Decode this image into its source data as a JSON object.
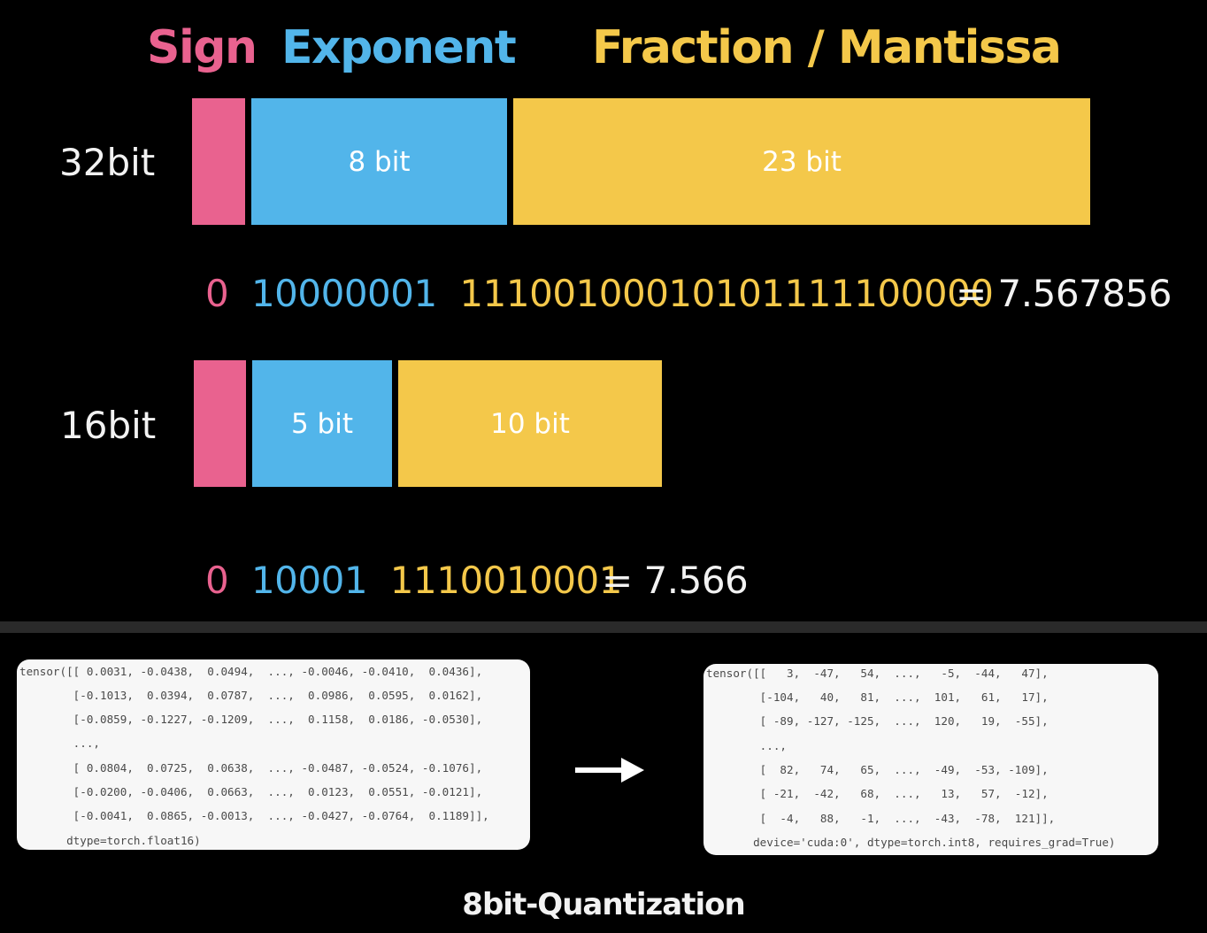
{
  "colors": {
    "sign": "#e9628f",
    "exponent": "#52b5ea",
    "fraction": "#f4c84a",
    "background": "#000000"
  },
  "headers": {
    "sign": "Sign",
    "exponent": "Exponent",
    "fraction": "Fraction / Mantissa"
  },
  "rows": {
    "fp32": {
      "label": "32bit",
      "exponent_label": "8 bit",
      "fraction_label": "23 bit",
      "sign_bits": "0",
      "exponent_bits": "10000001",
      "fraction_bits": "11100100010101111100000",
      "value_text": "= 7.567856"
    },
    "fp16": {
      "label": "16bit",
      "exponent_label": "5 bit",
      "fraction_label": "10 bit",
      "sign_bits": "0",
      "exponent_bits": "10001",
      "fraction_bits": "1110010001",
      "value_text": "= 7.566"
    }
  },
  "code": {
    "float16_lines": [
      "tensor([[ 0.0031, -0.0438,  0.0494,  ..., -0.0046, -0.0410,  0.0436],",
      "        [-0.1013,  0.0394,  0.0787,  ...,  0.0986,  0.0595,  0.0162],",
      "        [-0.0859, -0.1227, -0.1209,  ...,  0.1158,  0.0186, -0.0530],",
      "        ...,",
      "        [ 0.0804,  0.0725,  0.0638,  ..., -0.0487, -0.0524, -0.1076],",
      "        [-0.0200, -0.0406,  0.0663,  ...,  0.0123,  0.0551, -0.0121],",
      "        [-0.0041,  0.0865, -0.0013,  ..., -0.0427, -0.0764,  0.1189]],",
      "       dtype=torch.float16)"
    ],
    "int8_lines": [
      "tensor([[   3,  -47,   54,  ...,   -5,  -44,   47],",
      "        [-104,   40,   81,  ...,  101,   61,   17],",
      "        [ -89, -127, -125,  ...,  120,   19,  -55],",
      "        ...,",
      "        [  82,   74,   65,  ...,  -49,  -53, -109],",
      "        [ -21,  -42,   68,  ...,   13,   57,  -12],",
      "        [  -4,   88,   -1,  ...,  -43,  -78,  121]],",
      "       device='cuda:0', dtype=torch.int8, requires_grad=True)"
    ]
  },
  "arrow_icon": "right-arrow-icon",
  "caption": "8bit-Quantization"
}
